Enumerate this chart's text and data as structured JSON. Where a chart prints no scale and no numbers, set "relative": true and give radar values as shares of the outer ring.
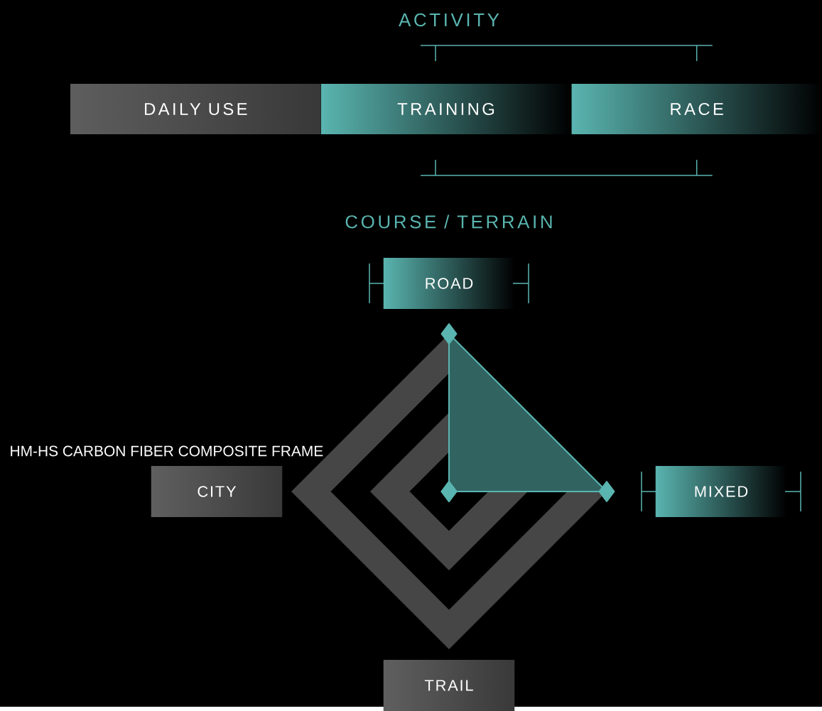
{
  "chart_data": [
    {
      "type": "other",
      "title": "ACTIVITY",
      "categories": [
        "DAILY USE",
        "TRAINING",
        "RACE"
      ],
      "colors": [
        "#5e5e5e",
        "#5ab5b0",
        "#5ab5b0"
      ]
    },
    {
      "type": "radar",
      "title": "COURSE / TERRAIN",
      "categories": [
        "ROAD",
        "MIXED",
        "TRAIL",
        "CITY"
      ],
      "relative": true,
      "grid": true,
      "marker": "diamond",
      "series": [
        {
          "color": "#5ab5b0",
          "values": [
            1,
            1,
            0,
            0
          ]
        }
      ],
      "annotations": [
        "HM-HS CARBON FIBER COMPOSITE FRAME"
      ]
    }
  ]
}
